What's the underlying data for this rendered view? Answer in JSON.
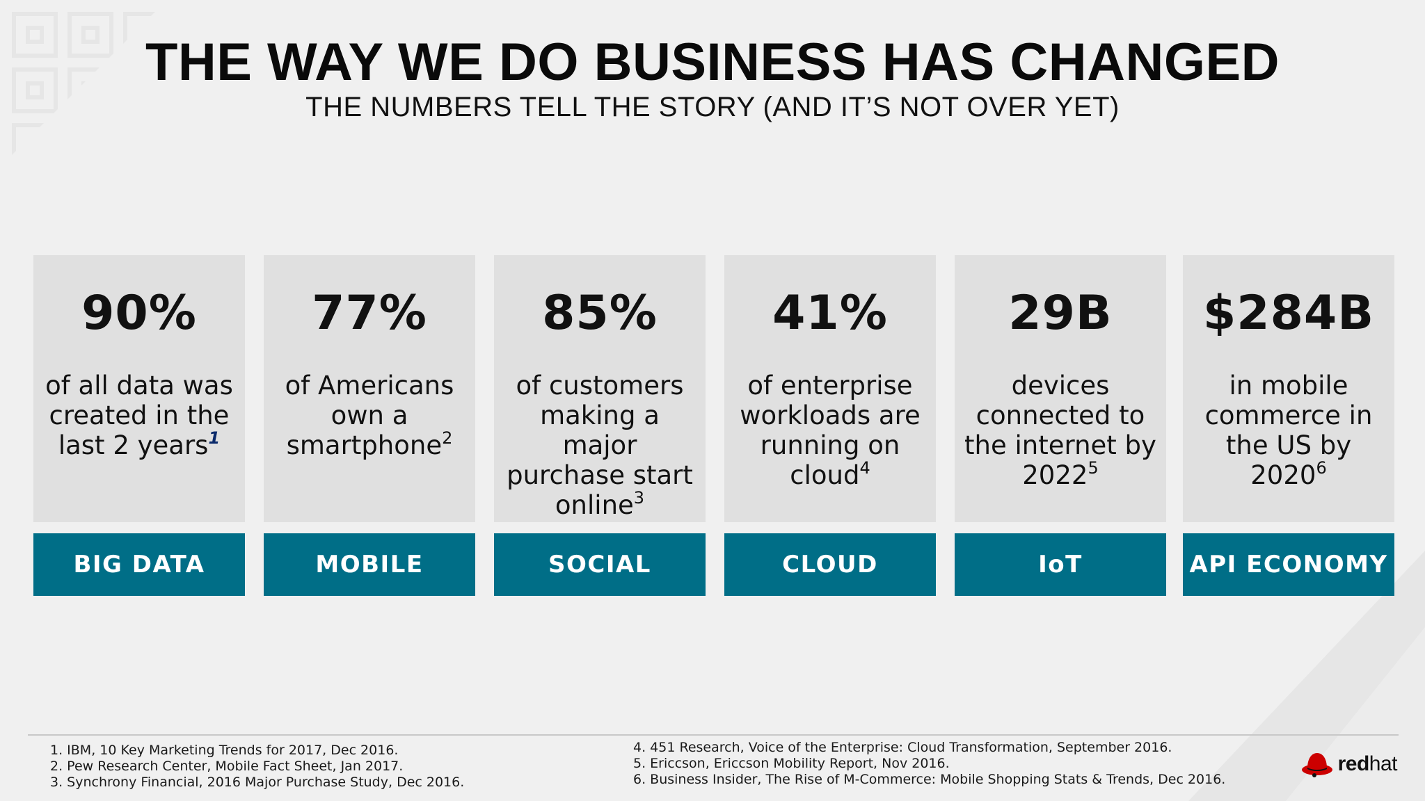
{
  "slide": {
    "title": "THE WAY WE DO BUSINESS HAS CHANGED",
    "subtitle": "THE NUMBERS TELL THE STORY (AND IT’S NOT OVER YET)"
  },
  "cards": [
    {
      "stat": "90%",
      "desc": "of all data was created in the last 2 years",
      "sup": "1",
      "label": "BIG DATA"
    },
    {
      "stat": "77%",
      "desc": "of Americans own a smartphone",
      "sup": "2",
      "label": "MOBILE"
    },
    {
      "stat": "85%",
      "desc": "of customers making a major purchase start online",
      "sup": "3",
      "label": "SOCIAL"
    },
    {
      "stat": "41%",
      "desc": "of enterprise workloads are running on cloud",
      "sup": "4",
      "label": "CLOUD"
    },
    {
      "stat": "29B",
      "desc": "devices connected to the internet by 2022",
      "sup": "5",
      "label": "IoT"
    },
    {
      "stat": "$284B",
      "desc": "in mobile commerce in the US by 2020",
      "sup": "6",
      "label": "API ECONOMY"
    }
  ],
  "footnotes": {
    "left": [
      "1.  IBM, 10 Key Marketing Trends for 2017, Dec 2016.",
      "2.  Pew Research Center, Mobile Fact Sheet, Jan 2017.",
      "3.  Synchrony Financial, 2016 Major Purchase Study, Dec 2016."
    ],
    "right": [
      "4.  451 Research, Voice of the Enterprise: Cloud Transformation, September 2016.",
      "5.  Ericcson, Ericcson Mobility Report, Nov 2016.",
      "6.  Business Insider, The Rise of M-Commerce: Mobile Shopping Stats & Trends, Dec 2016."
    ]
  },
  "logo": {
    "bold": "red",
    "light": "hat",
    "icon": "redhat-shadowman-icon"
  },
  "colors": {
    "background": "#f0f0f0",
    "card": "#e0e0e0",
    "label": "#006e87",
    "logo_red": "#cc0000"
  }
}
